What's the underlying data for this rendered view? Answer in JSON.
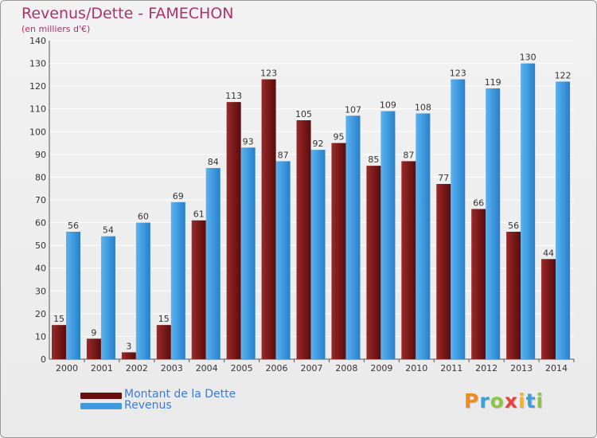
{
  "title": "Revenus/Dette - FAMECHON",
  "subtitle": "(en milliers d'€)",
  "colors": {
    "dette": "#7a1a1a",
    "revenus": "#3f9ae0",
    "title": "#b0306a",
    "legend_text": "#3b7be0"
  },
  "legend": [
    {
      "label": "Montant de la Dette",
      "color": "#7a1a1a"
    },
    {
      "label": "Revenus",
      "color": "#3f9ae0"
    }
  ],
  "logo": {
    "letters": [
      "P",
      "r",
      "o",
      "x",
      "i",
      "t",
      "i"
    ],
    "colors": [
      "#f08a1c",
      "#3aa0d8",
      "#8cc63f",
      "#e8413c",
      "#f5b21c",
      "#3aa0d8",
      "#8cc63f"
    ]
  },
  "chart_data": {
    "type": "bar",
    "title": "Revenus/Dette - FAMECHON",
    "subtitle": "(en milliers d'€)",
    "categories": [
      "2000",
      "2001",
      "2002",
      "2003",
      "2004",
      "2005",
      "2006",
      "2007",
      "2008",
      "2009",
      "2010",
      "2011",
      "2012",
      "2013",
      "2014"
    ],
    "series": [
      {
        "name": "Montant de la Dette",
        "values": [
          15,
          9,
          3,
          15,
          61,
          113,
          123,
          105,
          95,
          85,
          87,
          77,
          66,
          56,
          44
        ]
      },
      {
        "name": "Revenus",
        "values": [
          56,
          54,
          60,
          69,
          84,
          93,
          87,
          92,
          107,
          109,
          108,
          123,
          119,
          130,
          122
        ]
      }
    ],
    "yticks": [
      0,
      10,
      20,
      30,
      40,
      50,
      60,
      70,
      80,
      90,
      100,
      110,
      120,
      130,
      140
    ],
    "ylim": [
      0,
      140
    ],
    "grid": true,
    "legend_position": "bottom-left",
    "show_value_labels": true
  }
}
